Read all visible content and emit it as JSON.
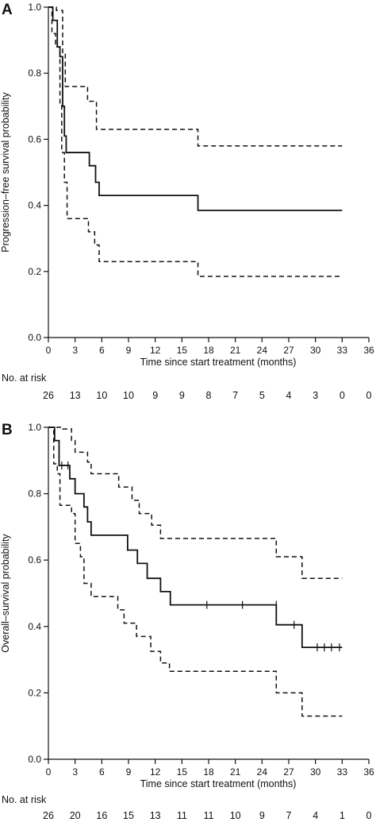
{
  "chart_data": [
    {
      "type": "line",
      "panel_label": "A",
      "ylabel": "Progression–free survival probability",
      "xlabel": "Time since start treatment (months)",
      "xlim": [
        0,
        36
      ],
      "ylim": [
        0,
        1
      ],
      "xticks": [
        0,
        3,
        6,
        9,
        12,
        15,
        18,
        21,
        24,
        27,
        30,
        33,
        36
      ],
      "yticks": [
        "0.0",
        "0.2",
        "0.4",
        "0.6",
        "0.8",
        "1.0"
      ],
      "grid": false,
      "risk_table_label": "No. at risk",
      "at_risk": [
        26,
        13,
        10,
        10,
        9,
        9,
        8,
        7,
        5,
        4,
        3,
        0,
        0
      ],
      "series": [
        {
          "style": "solid",
          "x": [
            0,
            0.5,
            0.5,
            1.0,
            1.0,
            1.3,
            1.3,
            1.6,
            1.6,
            1.8,
            1.8,
            2.0,
            2.0,
            4.6,
            4.6,
            5.3,
            5.3,
            5.7,
            5.7,
            16.8,
            16.8,
            33
          ],
          "y": [
            1.0,
            1.0,
            0.96,
            0.96,
            0.88,
            0.88,
            0.85,
            0.85,
            0.7,
            0.7,
            0.61,
            0.61,
            0.56,
            0.56,
            0.52,
            0.52,
            0.47,
            0.47,
            0.43,
            0.43,
            0.385,
            0.385
          ]
        },
        {
          "style": "dashed",
          "x": [
            0,
            0.9,
            0.9,
            1.6,
            1.6,
            1.9,
            1.9,
            4.4,
            4.4,
            5.4,
            5.4,
            16.8,
            16.8,
            33
          ],
          "y": [
            1.0,
            1.0,
            0.99,
            0.99,
            0.86,
            0.86,
            0.76,
            0.76,
            0.715,
            0.715,
            0.63,
            0.63,
            0.58,
            0.58
          ]
        },
        {
          "style": "dashed",
          "x": [
            0,
            0.4,
            0.4,
            0.8,
            0.8,
            1.3,
            1.3,
            1.5,
            1.5,
            1.8,
            1.8,
            2.1,
            2.1,
            4.5,
            4.5,
            5.2,
            5.2,
            5.7,
            5.7,
            16.8,
            16.8,
            33
          ],
          "y": [
            1.0,
            1.0,
            0.92,
            0.92,
            0.88,
            0.88,
            0.71,
            0.71,
            0.56,
            0.56,
            0.47,
            0.47,
            0.36,
            0.36,
            0.32,
            0.32,
            0.28,
            0.28,
            0.23,
            0.23,
            0.185,
            0.185
          ]
        }
      ],
      "censored": []
    },
    {
      "type": "line",
      "panel_label": "B",
      "ylabel": "Overall–survival probability",
      "xlabel": "Time since start treatment (months)",
      "xlim": [
        0,
        36
      ],
      "ylim": [
        0,
        1
      ],
      "xticks": [
        0,
        3,
        6,
        9,
        12,
        15,
        18,
        21,
        24,
        27,
        30,
        33,
        36
      ],
      "yticks": [
        "0.0",
        "0.2",
        "0.4",
        "0.6",
        "0.8",
        "1.0"
      ],
      "grid": false,
      "risk_table_label": "No. at risk",
      "at_risk": [
        26,
        20,
        16,
        15,
        13,
        11,
        11,
        10,
        9,
        7,
        4,
        1,
        0
      ],
      "series": [
        {
          "style": "solid",
          "x": [
            0,
            0.7,
            0.7,
            1.2,
            1.2,
            2.4,
            2.4,
            3.0,
            3.0,
            4.0,
            4.0,
            4.4,
            4.4,
            4.8,
            4.8,
            8.9,
            8.9,
            10.0,
            10.0,
            11.1,
            11.1,
            12.6,
            12.6,
            13.7,
            13.7,
            25.6,
            25.6,
            28.5,
            28.5,
            33
          ],
          "y": [
            1.0,
            1.0,
            0.96,
            0.96,
            0.885,
            0.885,
            0.845,
            0.845,
            0.8,
            0.8,
            0.76,
            0.76,
            0.715,
            0.715,
            0.675,
            0.675,
            0.63,
            0.63,
            0.59,
            0.59,
            0.545,
            0.545,
            0.505,
            0.505,
            0.465,
            0.465,
            0.405,
            0.405,
            0.337,
            0.337
          ]
        },
        {
          "style": "dashed",
          "x": [
            0,
            1.6,
            1.6,
            2.6,
            2.6,
            3.0,
            3.0,
            4.4,
            4.4,
            4.8,
            4.8,
            7.9,
            7.9,
            9.4,
            9.4,
            10.2,
            10.2,
            11.6,
            11.6,
            12.6,
            12.6,
            13.7,
            13.7,
            25.6,
            25.6,
            28.5,
            28.5,
            33
          ],
          "y": [
            1.0,
            1.0,
            0.995,
            0.995,
            0.96,
            0.96,
            0.925,
            0.925,
            0.895,
            0.895,
            0.86,
            0.86,
            0.82,
            0.82,
            0.78,
            0.78,
            0.74,
            0.74,
            0.705,
            0.705,
            0.665,
            0.665,
            0.665,
            0.665,
            0.61,
            0.61,
            0.545,
            0.545
          ]
        },
        {
          "style": "dashed",
          "x": [
            0,
            0.6,
            0.6,
            1.0,
            1.0,
            1.3,
            1.3,
            2.6,
            2.6,
            3.0,
            3.0,
            3.6,
            3.6,
            4.0,
            4.0,
            4.8,
            4.8,
            7.8,
            7.8,
            8.5,
            8.5,
            9.9,
            9.9,
            11.5,
            11.5,
            12.6,
            12.6,
            13.6,
            13.6,
            25.6,
            25.6,
            28.5,
            28.5,
            33
          ],
          "y": [
            1.0,
            1.0,
            0.89,
            0.89,
            0.86,
            0.86,
            0.765,
            0.765,
            0.74,
            0.74,
            0.65,
            0.65,
            0.61,
            0.61,
            0.53,
            0.53,
            0.49,
            0.49,
            0.45,
            0.45,
            0.41,
            0.41,
            0.37,
            0.37,
            0.325,
            0.325,
            0.29,
            0.29,
            0.265,
            0.265,
            0.2,
            0.2,
            0.13,
            0.13
          ]
        }
      ],
      "censored": [
        {
          "x": 1.5,
          "y": 0.885
        },
        {
          "x": 2.2,
          "y": 0.885
        },
        {
          "x": 17.8,
          "y": 0.465
        },
        {
          "x": 21.8,
          "y": 0.465
        },
        {
          "x": 25.6,
          "y": 0.465
        },
        {
          "x": 27.6,
          "y": 0.405
        },
        {
          "x": 30.2,
          "y": 0.337
        },
        {
          "x": 31.0,
          "y": 0.337
        },
        {
          "x": 31.8,
          "y": 0.337
        },
        {
          "x": 32.7,
          "y": 0.337
        }
      ]
    }
  ]
}
